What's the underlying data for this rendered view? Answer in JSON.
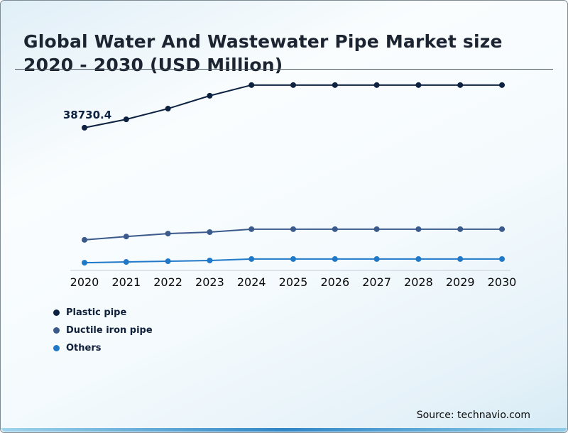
{
  "header": {
    "title": "Global Water And Wastewater Pipe Market size 2020 - 2030 (USD Million)"
  },
  "footer": {
    "source": "Source: technavio.com"
  },
  "chart_data": {
    "type": "line",
    "title": "Global Water And Wastewater Pipe Market size 2020 - 2030 (USD Million)",
    "xlabel": "",
    "ylabel": "USD Million",
    "x": [
      "2020",
      "2021",
      "2022",
      "2023",
      "2024",
      "2025",
      "2026",
      "2027",
      "2028",
      "2029",
      "2030"
    ],
    "ylim": [
      0,
      52000
    ],
    "grid": false,
    "legend_position": "bottom-left",
    "series": [
      {
        "name": "Plastic pipe",
        "color": "#0d2240",
        "values": [
          38730.4,
          41000,
          43900,
          47400,
          50300,
          50300,
          50300,
          50300,
          50300,
          50300,
          50300
        ]
      },
      {
        "name": "Ductile iron pipe",
        "color": "#3a5a8c",
        "values": [
          8300,
          9200,
          10000,
          10400,
          11200,
          11200,
          11200,
          11200,
          11200,
          11200,
          11200
        ]
      },
      {
        "name": "Others",
        "color": "#1f78c8",
        "values": [
          2100,
          2300,
          2500,
          2700,
          3100,
          3100,
          3100,
          3100,
          3100,
          3100,
          3100
        ]
      }
    ],
    "annotations": [
      {
        "series": "Plastic pipe",
        "index": 0,
        "text": "38730.4"
      }
    ]
  }
}
